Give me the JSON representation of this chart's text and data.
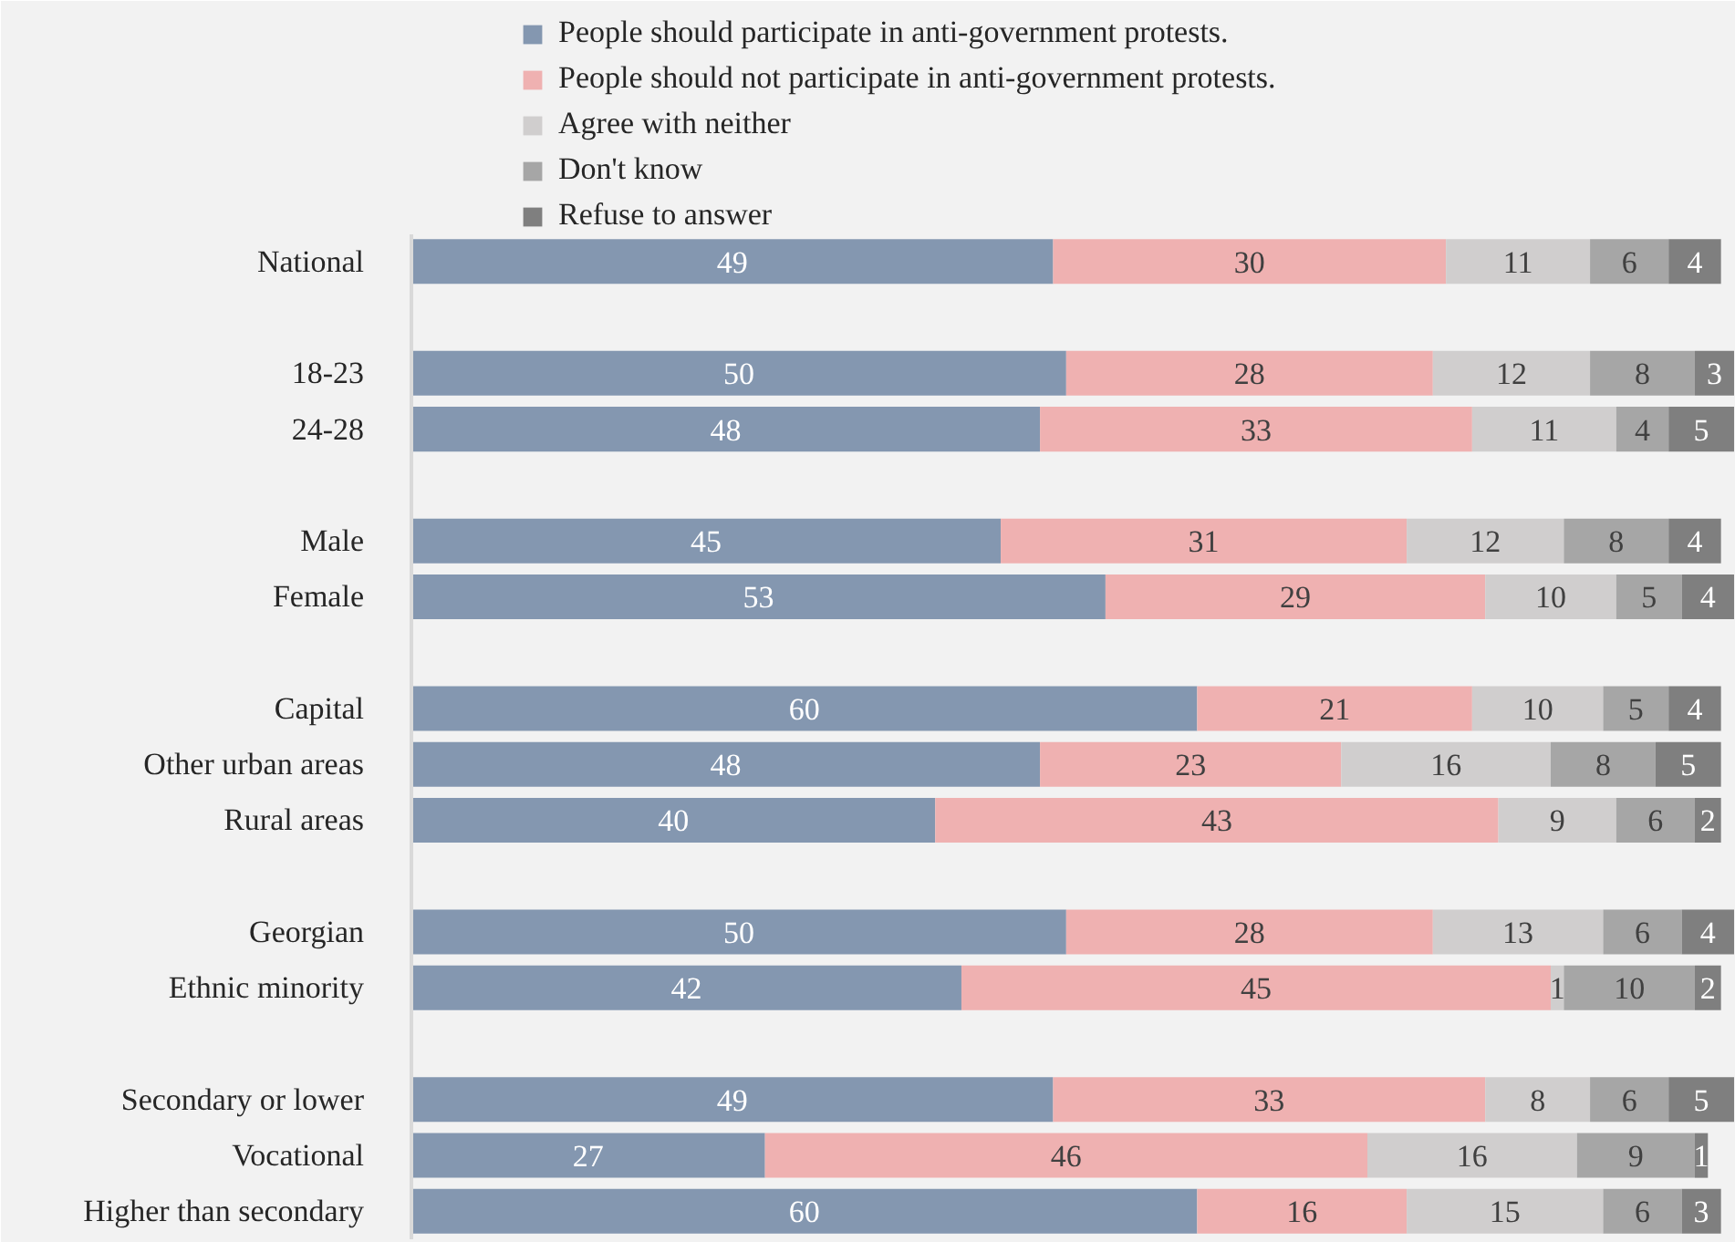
{
  "chart_data": {
    "type": "bar",
    "orientation": "horizontal",
    "stacked": true,
    "data_labels": true,
    "legend": "top",
    "categories": [
      "National",
      null,
      "18-23",
      "24-28",
      null,
      "Male",
      "Female",
      null,
      "Capital",
      "Other urban areas",
      "Rural areas",
      null,
      "Georgian",
      "Ethnic minority",
      null,
      "Secondary or lower",
      "Vocational",
      "Higher than secondary"
    ],
    "series": [
      {
        "name": "People should participate in anti-government protests.",
        "color": "#8497b0",
        "values": [
          49,
          null,
          50,
          48,
          null,
          45,
          53,
          null,
          60,
          48,
          40,
          null,
          50,
          42,
          null,
          49,
          27,
          60
        ]
      },
      {
        "name": "People should not participate in anti-government protests.",
        "color": "#efb1b1",
        "values": [
          30,
          null,
          28,
          33,
          null,
          31,
          29,
          null,
          21,
          23,
          43,
          null,
          28,
          45,
          null,
          33,
          46,
          16
        ]
      },
      {
        "name": "Agree with neither",
        "color": "#d0cece",
        "values": [
          11,
          null,
          12,
          11,
          null,
          12,
          10,
          null,
          10,
          16,
          9,
          null,
          13,
          1,
          null,
          8,
          16,
          15
        ]
      },
      {
        "name": "Don't know",
        "color": "#a6a6a6",
        "values": [
          6,
          null,
          8,
          4,
          null,
          8,
          5,
          null,
          5,
          8,
          6,
          null,
          6,
          10,
          null,
          6,
          9,
          6
        ]
      },
      {
        "name": "Refuse to answer",
        "color": "#7f7f7f",
        "values": [
          4,
          null,
          3,
          5,
          null,
          4,
          4,
          null,
          4,
          5,
          2,
          null,
          4,
          2,
          null,
          5,
          1,
          3
        ]
      }
    ]
  }
}
